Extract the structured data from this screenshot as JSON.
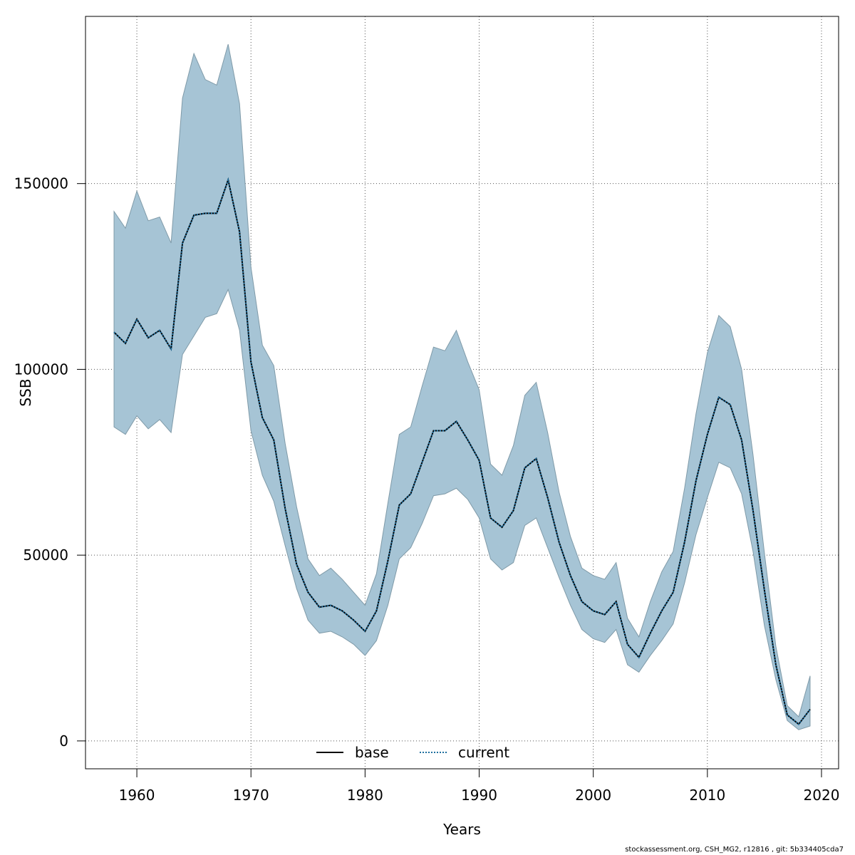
{
  "chart_data": {
    "type": "area",
    "title": "",
    "xlabel": "Years",
    "ylabel": "SSB",
    "xlim": [
      1955.5,
      2021.5
    ],
    "ylim": [
      -7500,
      195000
    ],
    "x_ticks": [
      1960,
      1970,
      1980,
      1990,
      2000,
      2010,
      2020
    ],
    "y_ticks": [
      0,
      50000,
      100000,
      150000
    ],
    "grid": true,
    "legend_position": "bottom-center",
    "colors": {
      "band": "#a6c4d5",
      "band_edge": "#7f9aa8",
      "base": "#000000",
      "current": "#1f6f9f",
      "grid": "#555555"
    },
    "years": [
      1958,
      1959,
      1960,
      1961,
      1962,
      1963,
      1964,
      1965,
      1966,
      1967,
      1968,
      1969,
      1970,
      1971,
      1972,
      1973,
      1974,
      1975,
      1976,
      1977,
      1978,
      1979,
      1980,
      1981,
      1982,
      1983,
      1984,
      1985,
      1986,
      1987,
      1988,
      1989,
      1990,
      1991,
      1992,
      1993,
      1994,
      1995,
      1996,
      1997,
      1998,
      1999,
      2000,
      2001,
      2002,
      2003,
      2004,
      2005,
      2006,
      2007,
      2008,
      2009,
      2010,
      2011,
      2012,
      2013,
      2014,
      2015,
      2016,
      2017,
      2018,
      2019
    ],
    "series": [
      {
        "name": "base",
        "style": "solid",
        "values": [
          110000,
          107000,
          113500,
          108500,
          110500,
          105500,
          134000,
          141500,
          142000,
          142000,
          151000,
          137000,
          102000,
          87000,
          81000,
          62500,
          47500,
          40000,
          36000,
          36500,
          35000,
          32500,
          29500,
          35000,
          48500,
          63500,
          66500,
          75000,
          83500,
          83500,
          86000,
          81000,
          75500,
          60000,
          57500,
          62000,
          73500,
          76000,
          65500,
          53500,
          44500,
          37500,
          35000,
          34000,
          37500,
          26000,
          22500,
          29000,
          35000,
          40000,
          53500,
          70000,
          82500,
          92500,
          90500,
          81000,
          62000,
          40500,
          20500,
          7000,
          4500,
          8500
        ]
      },
      {
        "name": "current",
        "style": "dotted",
        "values": [
          110000,
          107000,
          113500,
          108500,
          110500,
          105500,
          134000,
          141500,
          142000,
          142000,
          151000,
          137000,
          102000,
          87000,
          81000,
          62500,
          47500,
          40000,
          36000,
          36500,
          35000,
          32500,
          29500,
          35000,
          48500,
          63500,
          66500,
          75000,
          83500,
          83500,
          86000,
          81000,
          75500,
          60000,
          57500,
          62000,
          73500,
          76000,
          65500,
          53500,
          44500,
          37500,
          35000,
          34000,
          37500,
          26000,
          22500,
          29000,
          35000,
          40000,
          53500,
          70000,
          82500,
          92500,
          90500,
          81000,
          62000,
          40500,
          20500,
          7000,
          4500,
          8500
        ]
      }
    ],
    "upper": [
      142500,
      138000,
      148000,
      140000,
      141000,
      134000,
      173000,
      185000,
      178000,
      176500,
      187500,
      171500,
      127500,
      106500,
      101000,
      80000,
      63000,
      49000,
      44500,
      46500,
      43500,
      40000,
      36500,
      45000,
      64000,
      82500,
      84500,
      95500,
      106000,
      105000,
      110500,
      102000,
      94500,
      74500,
      71500,
      79500,
      93000,
      96500,
      83000,
      67000,
      55000,
      46500,
      44500,
      43500,
      48000,
      33000,
      28000,
      37500,
      45500,
      51000,
      68000,
      88000,
      104500,
      114500,
      111500,
      100000,
      77000,
      50500,
      25500,
      9500,
      6500,
      17500
    ],
    "lower": [
      84500,
      82500,
      87500,
      84000,
      86500,
      83000,
      104000,
      109000,
      114000,
      115000,
      121500,
      110500,
      83500,
      71500,
      64500,
      52500,
      41000,
      32500,
      29000,
      29500,
      28000,
      26000,
      23000,
      27000,
      36500,
      49000,
      52000,
      58500,
      66000,
      66500,
      68000,
      65000,
      60000,
      49000,
      46000,
      48000,
      58000,
      60000,
      52000,
      44000,
      36500,
      30000,
      27500,
      26500,
      30000,
      20500,
      18500,
      23000,
      27000,
      31500,
      42500,
      55500,
      65500,
      75000,
      73500,
      66500,
      51000,
      31000,
      16500,
      5500,
      3000,
      4000
    ]
  },
  "footer": "stockassessment.org, CSH_MG2, r12816 , git: 5b334405cda7"
}
